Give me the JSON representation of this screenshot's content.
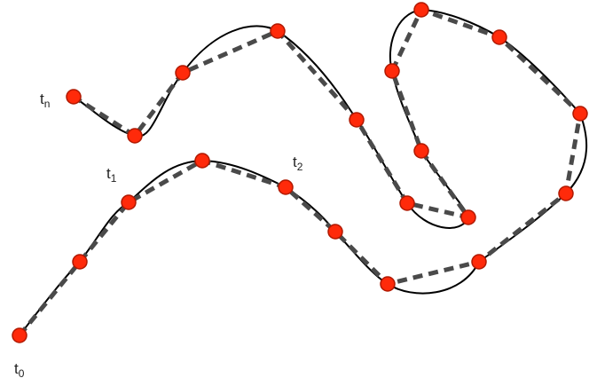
{
  "diagram": {
    "description_type": "curve-sampling",
    "colors": {
      "curve": "#000000",
      "polyline": "#4a4a4a",
      "point_fill": "#ff2a0a",
      "point_stroke": "#b01800"
    },
    "labels": {
      "t0": {
        "base": "t",
        "sub": "0"
      },
      "t1": {
        "base": "t",
        "sub": "1"
      },
      "t2": {
        "base": "t",
        "sub": "2"
      },
      "tn": {
        "base": "t",
        "sub": "n"
      }
    }
  }
}
